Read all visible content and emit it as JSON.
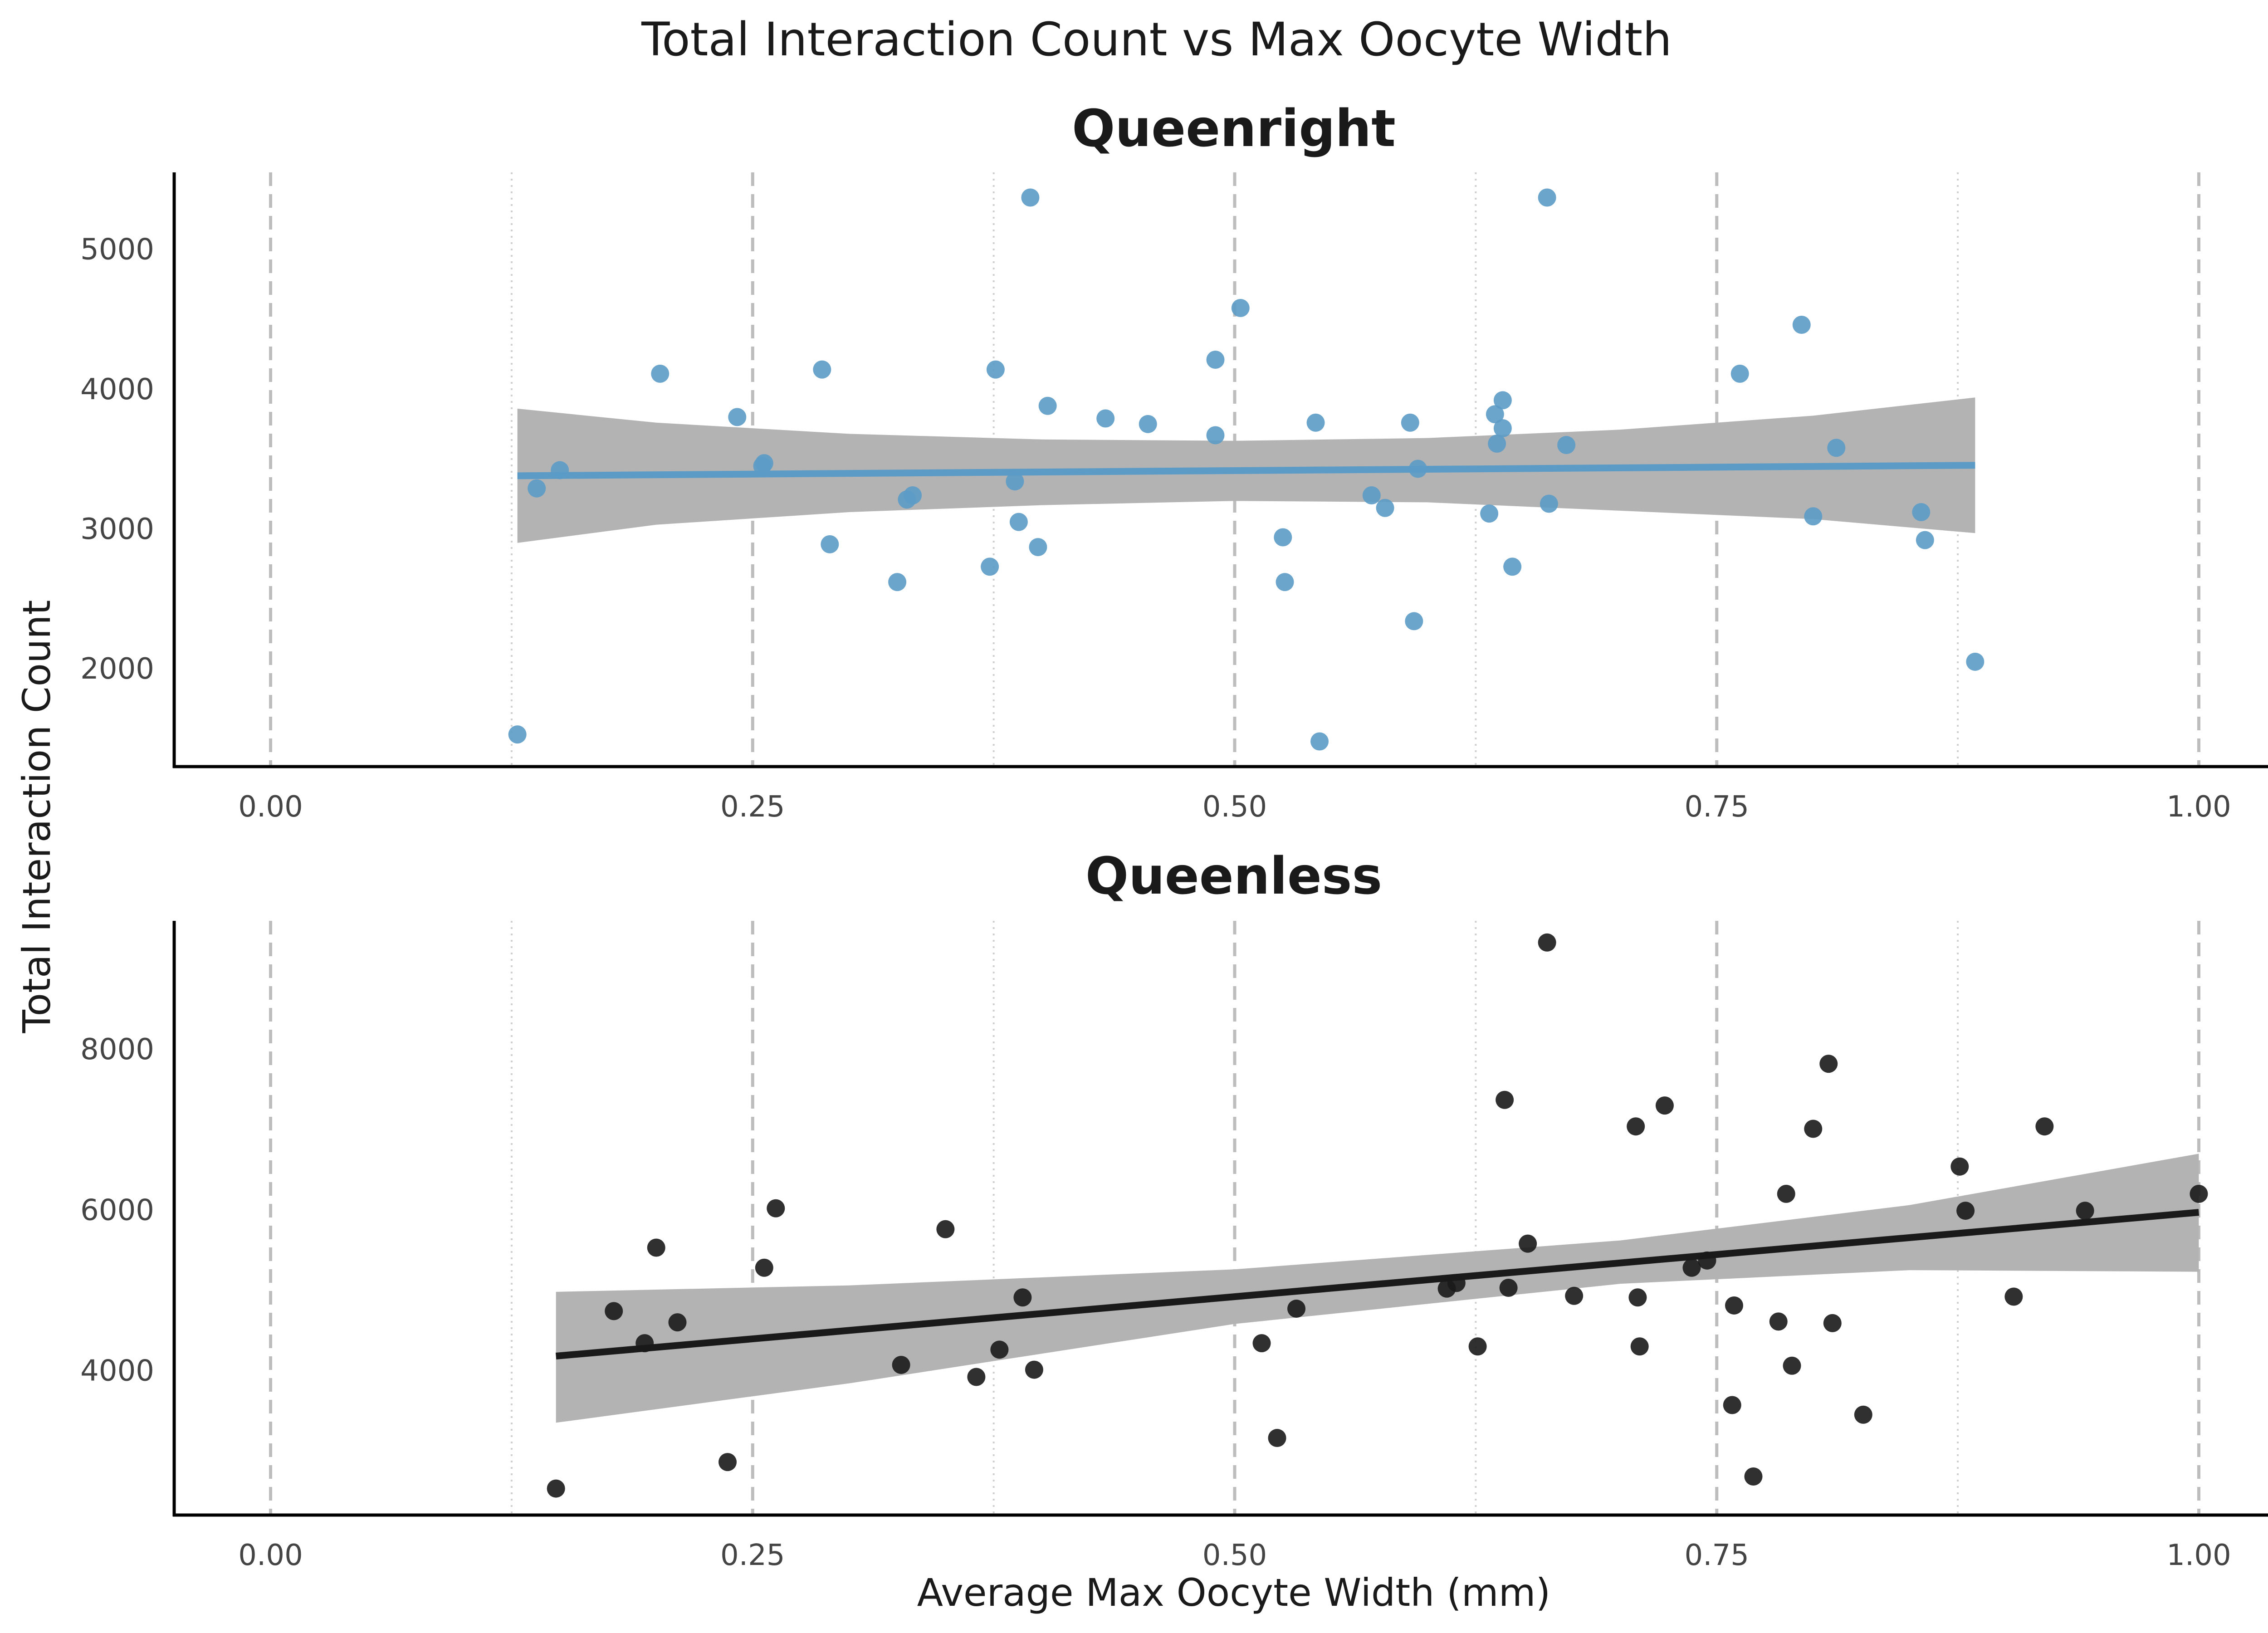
{
  "chart_data": {
    "type": "scatter",
    "title": "Total Interaction Count vs Max Oocyte Width",
    "xlabel": "Average Max Oocyte Width (mm)",
    "ylabel": "Total Interaction Count",
    "grid": "vertical",
    "x_ticks": [
      "0.00",
      "0.25",
      "0.50",
      "0.75",
      "1.00"
    ],
    "panels": [
      {
        "title": "Queenright",
        "color": "#5b9bc6",
        "xlim": [
          -0.05,
          1.05
        ],
        "ylim": [
          1300,
          5550
        ],
        "y_ticks": [
          2000,
          3000,
          4000,
          5000
        ],
        "fit": {
          "x": [
            0.128,
            0.884
          ],
          "y": [
            3380,
            3455
          ]
        },
        "ci": {
          "x": [
            0.128,
            0.2,
            0.3,
            0.4,
            0.5,
            0.6,
            0.7,
            0.8,
            0.884
          ],
          "upper": [
            3860,
            3760,
            3680,
            3640,
            3630,
            3650,
            3710,
            3810,
            3940
          ],
          "lower": [
            2900,
            3030,
            3120,
            3170,
            3200,
            3190,
            3130,
            3070,
            2970
          ]
        },
        "points": {
          "x": [
            0.128,
            0.138,
            0.15,
            0.202,
            0.242,
            0.255,
            0.256,
            0.286,
            0.29,
            0.325,
            0.33,
            0.333,
            0.373,
            0.376,
            0.386,
            0.388,
            0.394,
            0.398,
            0.403,
            0.433,
            0.455,
            0.49,
            0.49,
            0.503,
            0.525,
            0.526,
            0.542,
            0.544,
            0.571,
            0.578,
            0.591,
            0.593,
            0.595,
            0.632,
            0.635,
            0.636,
            0.639,
            0.639,
            0.644,
            0.662,
            0.663,
            0.672,
            0.762,
            0.794,
            0.8,
            0.812,
            0.856,
            0.858,
            0.884
          ],
          "y": [
            1530,
            3290,
            3420,
            4110,
            3800,
            3450,
            3470,
            4140,
            2890,
            2620,
            3210,
            3240,
            2730,
            4140,
            3340,
            3050,
            5370,
            2870,
            3880,
            3790,
            3750,
            4210,
            3670,
            4580,
            2940,
            2620,
            3760,
            1480,
            3240,
            3150,
            3760,
            2340,
            3430,
            3110,
            3820,
            3610,
            3720,
            3920,
            2730,
            5370,
            3180,
            3600,
            4110,
            4460,
            3090,
            3580,
            3120,
            2920,
            2050
          ]
        }
      },
      {
        "title": "Queenless",
        "color": "#1a1a1a",
        "xlim": [
          -0.05,
          1.05
        ],
        "ylim": [
          2200,
          9600
        ],
        "y_ticks": [
          4000,
          6000,
          8000
        ],
        "fit": {
          "x": [
            0.148,
            1.0
          ],
          "y": [
            4180,
            5970
          ]
        },
        "ci": {
          "x": [
            0.148,
            0.3,
            0.5,
            0.7,
            0.85,
            1.0
          ],
          "upper": [
            4980,
            5060,
            5260,
            5620,
            6060,
            6700
          ],
          "lower": [
            3350,
            3840,
            4580,
            5080,
            5250,
            5230
          ]
        },
        "points": {
          "x": [
            0.148,
            0.178,
            0.194,
            0.2,
            0.211,
            0.237,
            0.256,
            0.262,
            0.327,
            0.35,
            0.366,
            0.378,
            0.39,
            0.396,
            0.514,
            0.522,
            0.532,
            0.61,
            0.615,
            0.626,
            0.64,
            0.642,
            0.652,
            0.662,
            0.676,
            0.708,
            0.709,
            0.71,
            0.723,
            0.737,
            0.745,
            0.758,
            0.759,
            0.769,
            0.782,
            0.786,
            0.789,
            0.8,
            0.808,
            0.81,
            0.826,
            0.876,
            0.879,
            0.904,
            0.92,
            0.941,
            1.0
          ],
          "y": [
            2530,
            4740,
            4340,
            5530,
            4600,
            2860,
            5280,
            6020,
            4070,
            5760,
            3920,
            4260,
            4910,
            4010,
            4340,
            3160,
            4770,
            5020,
            5090,
            4300,
            7370,
            5030,
            5580,
            9330,
            4930,
            7040,
            4910,
            4300,
            7300,
            5280,
            5370,
            3570,
            4810,
            2680,
            4610,
            6200,
            4060,
            7010,
            7820,
            4590,
            3450,
            6540,
            5990,
            4920,
            7040,
            5990,
            6200
          ]
        }
      }
    ]
  }
}
